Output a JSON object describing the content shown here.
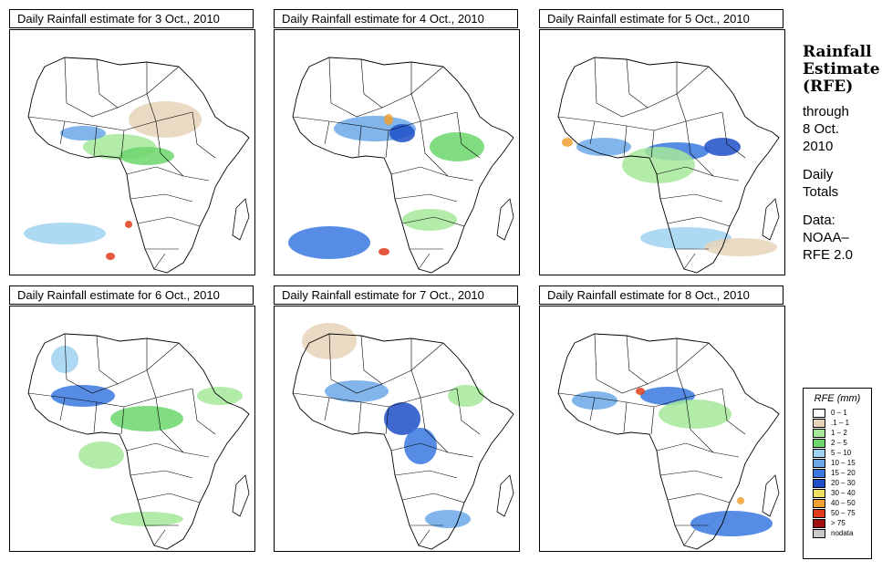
{
  "panels": [
    {
      "title": "Daily Rainfall estimate for  3 Oct., 2010"
    },
    {
      "title": "Daily Rainfall estimate for  4 Oct., 2010"
    },
    {
      "title": "Daily Rainfall estimate for  5 Oct., 2010"
    },
    {
      "title": "Daily Rainfall estimate for  6 Oct., 2010"
    },
    {
      "title": "Daily Rainfall estimate for  7 Oct., 2010"
    },
    {
      "title": "Daily Rainfall estimate for  8 Oct., 2010"
    }
  ],
  "side": {
    "title_line1": "Rainfall",
    "title_line2": "Estimate",
    "title_line3": "(RFE)",
    "through": "through",
    "date_line1": "8 Oct.",
    "date_line2": "2010",
    "totals_line1": "Daily",
    "totals_line2": "Totals",
    "data_label": "Data:",
    "data_line1": "NOAA–",
    "data_line2": "RFE 2.0"
  },
  "legend": {
    "title": "RFE (mm)",
    "items": [
      {
        "label": "0 – 1",
        "color": "#ffffff"
      },
      {
        "label": ".1 – 1",
        "color": "#e6d2b8"
      },
      {
        "label": "1 – 2",
        "color": "#a6e89a"
      },
      {
        "label": "2 – 5",
        "color": "#6cd66c"
      },
      {
        "label": "5 – 10",
        "color": "#9fd2f0"
      },
      {
        "label": "10 – 15",
        "color": "#6ba8e8"
      },
      {
        "label": "15 – 20",
        "color": "#3a78e0"
      },
      {
        "label": "20 – 30",
        "color": "#1e4fc8"
      },
      {
        "label": "30 – 40",
        "color": "#f0e060"
      },
      {
        "label": "40 – 50",
        "color": "#f0a030"
      },
      {
        "label": "50 – 75",
        "color": "#e03c1c"
      },
      {
        "label": "> 75",
        "color": "#a01010"
      },
      {
        "label": "nodata",
        "color": "#c8c8c8"
      }
    ]
  },
  "colors": {
    "border": "#000000",
    "rain_light": "#a6e89a",
    "rain_mid": "#6ba8e8",
    "rain_heavy": "#1e4fc8",
    "dry": "#e6d2b8"
  }
}
